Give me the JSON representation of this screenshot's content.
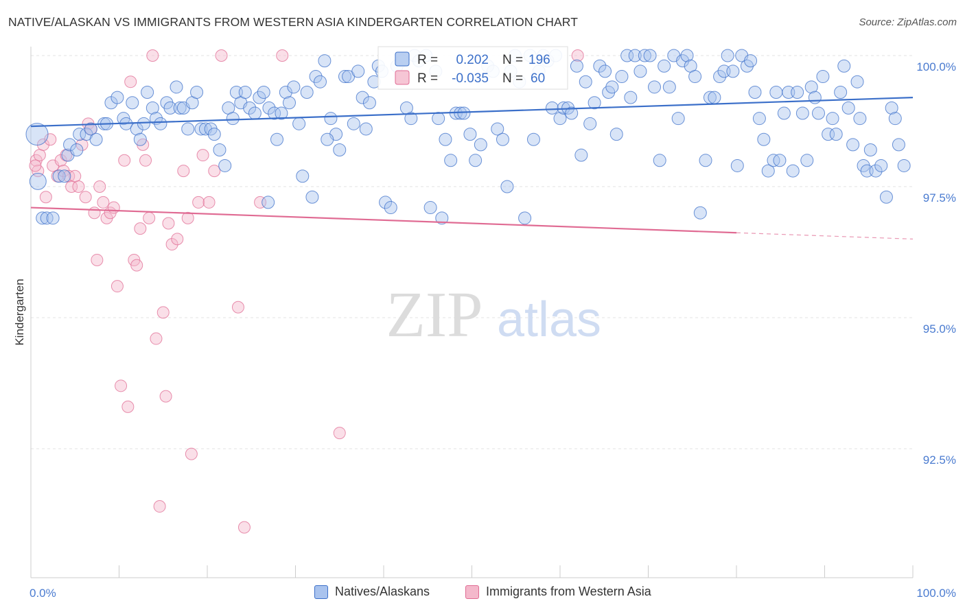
{
  "title": "NATIVE/ALASKAN VS IMMIGRANTS FROM WESTERN ASIA KINDERGARTEN CORRELATION CHART",
  "source": "Source: ZipAtlas.com",
  "watermark": {
    "zip": "ZIP",
    "atlas": "atlas"
  },
  "colors": {
    "blue": "#3b6fc9",
    "blue_fill": "#a9c3ee",
    "pink": "#e06b93",
    "pink_fill": "#f4b8cb",
    "tick_label": "#4a7bd0"
  },
  "chart_data": {
    "type": "scatter",
    "title": "NATIVE/ALASKAN VS IMMIGRANTS FROM WESTERN ASIA KINDERGARTEN CORRELATION CHART",
    "xlabel": "",
    "ylabel": "Kindergarten",
    "xlim": [
      0,
      100
    ],
    "ylim": [
      90.0,
      100.6
    ],
    "x_tick_labels": [
      "0.0%",
      "100.0%"
    ],
    "y_ticks": [
      100.0,
      97.5,
      95.0,
      92.5
    ],
    "y_tick_labels": [
      "100.0%",
      "97.5%",
      "95.0%",
      "92.5%"
    ],
    "grid": true,
    "legend_position": "top-center",
    "legend": [
      {
        "r_label": "R =",
        "r_value": "0.202",
        "n_label": "N =",
        "n_value": "196"
      },
      {
        "r_label": "R =",
        "r_value": "-0.035",
        "n_label": "N =",
        "n_value": "60"
      }
    ],
    "series": [
      {
        "name": "Natives/Alaskans",
        "color": "#3b6fc9",
        "trend": {
          "x": [
            0,
            100
          ],
          "y": [
            98.65,
            99.2
          ]
        },
        "points": [
          [
            0.7,
            98.5
          ],
          [
            0.8,
            97.6
          ],
          [
            1.3,
            96.9
          ],
          [
            1.8,
            96.9
          ],
          [
            2.5,
            96.9
          ],
          [
            3.2,
            97.7
          ],
          [
            3.8,
            97.7
          ],
          [
            4.2,
            98.1
          ],
          [
            4.4,
            98.3
          ],
          [
            5.2,
            98.2
          ],
          [
            5.5,
            98.5
          ],
          [
            6.3,
            98.5
          ],
          [
            6.8,
            98.6
          ],
          [
            7.4,
            98.4
          ],
          [
            8.3,
            98.7
          ],
          [
            8.6,
            98.7
          ],
          [
            9.1,
            99.1
          ],
          [
            9.8,
            99.2
          ],
          [
            10.5,
            98.8
          ],
          [
            10.8,
            98.7
          ],
          [
            11.5,
            99.1
          ],
          [
            12.0,
            98.6
          ],
          [
            12.4,
            98.4
          ],
          [
            12.8,
            98.7
          ],
          [
            13.2,
            99.3
          ],
          [
            13.8,
            99.0
          ],
          [
            14.2,
            98.8
          ],
          [
            14.7,
            98.7
          ],
          [
            15.4,
            99.1
          ],
          [
            15.8,
            99.0
          ],
          [
            16.5,
            99.4
          ],
          [
            16.9,
            99.0
          ],
          [
            17.3,
            99.0
          ],
          [
            17.8,
            98.6
          ],
          [
            18.3,
            99.1
          ],
          [
            18.8,
            99.3
          ],
          [
            19.3,
            98.6
          ],
          [
            19.8,
            98.6
          ],
          [
            20.4,
            98.6
          ],
          [
            20.8,
            98.5
          ],
          [
            21.4,
            98.2
          ],
          [
            22.0,
            97.9
          ],
          [
            22.4,
            99.0
          ],
          [
            22.9,
            98.8
          ],
          [
            23.3,
            99.3
          ],
          [
            23.8,
            99.1
          ],
          [
            24.3,
            99.3
          ],
          [
            24.8,
            99.0
          ],
          [
            25.4,
            98.9
          ],
          [
            25.9,
            99.2
          ],
          [
            26.4,
            99.3
          ],
          [
            27.0,
            99.0
          ],
          [
            27.6,
            98.9
          ],
          [
            27.9,
            98.4
          ],
          [
            28.4,
            98.9
          ],
          [
            28.9,
            99.3
          ],
          [
            29.3,
            99.1
          ],
          [
            29.8,
            99.4
          ],
          [
            30.4,
            98.7
          ],
          [
            30.8,
            97.7
          ],
          [
            31.3,
            99.3
          ],
          [
            31.9,
            97.3
          ],
          [
            32.3,
            99.6
          ],
          [
            32.8,
            99.5
          ],
          [
            33.3,
            99.9
          ],
          [
            34.0,
            98.8
          ],
          [
            34.6,
            98.5
          ],
          [
            35.0,
            98.2
          ],
          [
            35.6,
            99.6
          ],
          [
            36.0,
            99.6
          ],
          [
            36.6,
            98.7
          ],
          [
            37.1,
            99.7
          ],
          [
            37.6,
            99.2
          ],
          [
            38.0,
            98.6
          ],
          [
            38.4,
            99.1
          ],
          [
            38.9,
            99.5
          ],
          [
            39.4,
            99.8
          ],
          [
            39.8,
            99.7
          ],
          [
            40.2,
            97.2
          ],
          [
            40.8,
            97.1
          ],
          [
            41.5,
            99.8
          ],
          [
            42.1,
            99.9
          ],
          [
            42.6,
            99.0
          ],
          [
            43.1,
            98.8
          ],
          [
            43.5,
            100.0
          ],
          [
            44.0,
            99.9
          ],
          [
            44.8,
            100.0
          ],
          [
            45.3,
            97.1
          ],
          [
            45.9,
            99.7
          ],
          [
            46.2,
            98.8
          ],
          [
            46.6,
            96.9
          ],
          [
            47.0,
            98.4
          ],
          [
            47.6,
            98.0
          ],
          [
            48.2,
            98.9
          ],
          [
            48.7,
            98.9
          ],
          [
            49.1,
            98.9
          ],
          [
            49.8,
            98.5
          ],
          [
            50.4,
            98.0
          ],
          [
            51.0,
            98.3
          ],
          [
            51.8,
            99.8
          ],
          [
            52.4,
            99.7
          ],
          [
            52.9,
            98.6
          ],
          [
            53.5,
            98.4
          ],
          [
            54.0,
            97.5
          ],
          [
            54.4,
            99.7
          ],
          [
            54.9,
            100.0
          ],
          [
            55.4,
            99.5
          ],
          [
            56.0,
            96.9
          ],
          [
            56.6,
            100.0
          ],
          [
            57.0,
            98.4
          ],
          [
            57.6,
            99.7
          ],
          [
            58.1,
            100.0
          ],
          [
            58.6,
            99.9
          ],
          [
            59.1,
            99.0
          ],
          [
            59.5,
            100.0
          ],
          [
            60.0,
            98.8
          ],
          [
            60.4,
            99.0
          ],
          [
            60.9,
            99.0
          ],
          [
            61.3,
            98.9
          ],
          [
            61.9,
            99.8
          ],
          [
            62.4,
            98.1
          ],
          [
            62.9,
            99.5
          ],
          [
            63.4,
            98.7
          ],
          [
            63.9,
            99.1
          ],
          [
            64.5,
            99.8
          ],
          [
            65.1,
            99.7
          ],
          [
            65.5,
            99.3
          ],
          [
            65.9,
            99.4
          ],
          [
            66.4,
            98.5
          ],
          [
            67.0,
            99.6
          ],
          [
            67.6,
            100.0
          ],
          [
            68.0,
            99.2
          ],
          [
            68.5,
            100.0
          ],
          [
            69.1,
            99.7
          ],
          [
            69.6,
            100.0
          ],
          [
            70.2,
            100.0
          ],
          [
            70.7,
            99.4
          ],
          [
            71.3,
            98.0
          ],
          [
            71.8,
            99.8
          ],
          [
            72.4,
            99.4
          ],
          [
            72.9,
            100.0
          ],
          [
            73.4,
            98.8
          ],
          [
            73.9,
            99.9
          ],
          [
            74.4,
            100.0
          ],
          [
            74.8,
            99.8
          ],
          [
            75.3,
            99.6
          ],
          [
            75.9,
            97.0
          ],
          [
            76.5,
            98.0
          ],
          [
            77.0,
            99.2
          ],
          [
            77.5,
            99.2
          ],
          [
            78.1,
            99.6
          ],
          [
            78.6,
            99.7
          ],
          [
            79.0,
            100.0
          ],
          [
            79.6,
            99.7
          ],
          [
            80.1,
            97.9
          ],
          [
            80.6,
            100.0
          ],
          [
            81.2,
            99.8
          ],
          [
            81.6,
            99.9
          ],
          [
            82.1,
            99.3
          ],
          [
            82.6,
            98.8
          ],
          [
            83.1,
            98.4
          ],
          [
            83.6,
            97.8
          ],
          [
            84.2,
            98.0
          ],
          [
            84.5,
            99.3
          ],
          [
            84.9,
            98.0
          ],
          [
            85.4,
            98.9
          ],
          [
            85.9,
            99.3
          ],
          [
            86.4,
            97.8
          ],
          [
            86.9,
            99.3
          ],
          [
            87.5,
            98.9
          ],
          [
            88.0,
            98.0
          ],
          [
            88.5,
            99.4
          ],
          [
            88.9,
            99.2
          ],
          [
            89.3,
            98.9
          ],
          [
            89.8,
            99.6
          ],
          [
            90.4,
            98.5
          ],
          [
            90.9,
            98.8
          ],
          [
            91.3,
            98.5
          ],
          [
            91.8,
            99.3
          ],
          [
            92.2,
            99.8
          ],
          [
            92.7,
            99.0
          ],
          [
            93.2,
            98.3
          ],
          [
            93.7,
            99.5
          ],
          [
            94.0,
            98.8
          ],
          [
            94.4,
            97.9
          ],
          [
            94.8,
            97.8
          ],
          [
            95.2,
            98.2
          ],
          [
            95.8,
            97.8
          ],
          [
            96.4,
            97.9
          ],
          [
            97.0,
            97.3
          ],
          [
            97.6,
            99.0
          ],
          [
            98.0,
            98.8
          ],
          [
            98.4,
            98.3
          ],
          [
            99.0,
            97.9
          ],
          [
            26.9,
            97.2
          ],
          [
            33.6,
            98.4
          ]
        ]
      },
      {
        "name": "Immigrants from Western Asia",
        "color": "#e06b93",
        "trend": {
          "x": [
            0,
            80
          ],
          "y": [
            97.1,
            96.62
          ]
        },
        "trend_dashed": {
          "x": [
            80,
            100
          ],
          "y": [
            96.62,
            96.5
          ]
        },
        "points": [
          [
            0.6,
            98.0
          ],
          [
            0.8,
            97.8
          ],
          [
            1.0,
            98.1
          ],
          [
            1.4,
            98.3
          ],
          [
            1.7,
            97.3
          ],
          [
            2.2,
            98.4
          ],
          [
            2.5,
            97.9
          ],
          [
            3.0,
            97.7
          ],
          [
            3.4,
            98.0
          ],
          [
            3.7,
            97.8
          ],
          [
            4.0,
            98.1
          ],
          [
            4.3,
            97.7
          ],
          [
            4.6,
            97.5
          ],
          [
            5.0,
            97.7
          ],
          [
            5.4,
            97.5
          ],
          [
            5.8,
            98.3
          ],
          [
            6.2,
            97.3
          ],
          [
            6.5,
            98.7
          ],
          [
            6.8,
            98.6
          ],
          [
            7.2,
            97.0
          ],
          [
            7.5,
            96.1
          ],
          [
            7.8,
            97.5
          ],
          [
            8.2,
            97.2
          ],
          [
            8.6,
            96.9
          ],
          [
            9.0,
            97.0
          ],
          [
            9.4,
            97.1
          ],
          [
            9.8,
            95.6
          ],
          [
            10.2,
            93.7
          ],
          [
            10.6,
            98.0
          ],
          [
            11.0,
            93.3
          ],
          [
            11.3,
            99.5
          ],
          [
            11.7,
            96.1
          ],
          [
            12.0,
            96.0
          ],
          [
            12.4,
            96.7
          ],
          [
            12.7,
            98.3
          ],
          [
            13.0,
            98.0
          ],
          [
            13.4,
            96.9
          ],
          [
            13.8,
            100.0
          ],
          [
            14.2,
            94.6
          ],
          [
            14.6,
            91.4
          ],
          [
            15.0,
            95.1
          ],
          [
            15.3,
            93.5
          ],
          [
            15.6,
            96.8
          ],
          [
            16.0,
            96.4
          ],
          [
            16.6,
            96.5
          ],
          [
            17.3,
            97.8
          ],
          [
            17.8,
            96.9
          ],
          [
            18.2,
            92.4
          ],
          [
            19.0,
            97.2
          ],
          [
            19.5,
            98.1
          ],
          [
            20.2,
            97.2
          ],
          [
            20.8,
            97.8
          ],
          [
            21.6,
            100.0
          ],
          [
            23.5,
            95.2
          ],
          [
            24.2,
            91.0
          ],
          [
            26.0,
            97.2
          ],
          [
            28.5,
            100.0
          ],
          [
            35.0,
            92.8
          ],
          [
            62.0,
            100.0
          ],
          [
            0.5,
            97.9
          ]
        ]
      }
    ]
  }
}
